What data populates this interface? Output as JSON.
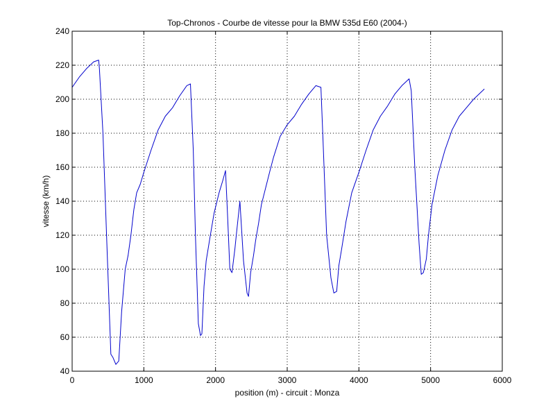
{
  "chart_data": {
    "type": "line",
    "title": "Top-Chronos - Courbe de vitesse pour la BMW 535d E60 (2004-)",
    "xlabel": "position (m) - circuit : Monza",
    "ylabel": "vitesse (km/h)",
    "xlim": [
      0,
      6000
    ],
    "ylim": [
      40,
      240
    ],
    "xticks": [
      0,
      1000,
      2000,
      3000,
      4000,
      5000,
      6000
    ],
    "yticks": [
      40,
      60,
      80,
      100,
      120,
      140,
      160,
      180,
      200,
      220,
      240
    ],
    "xtick_labels": [
      "0",
      "1000",
      "2000",
      "3000",
      "4000",
      "5000",
      "6000"
    ],
    "ytick_labels": [
      "40",
      "60",
      "80",
      "100",
      "120",
      "140",
      "160",
      "180",
      "200",
      "220",
      "240"
    ],
    "grid": true,
    "series": [
      {
        "color": "#0000cc",
        "x": [
          0,
          100,
          200,
          300,
          370,
          380,
          430,
          480,
          540,
          570,
          610,
          650,
          690,
          740,
          780,
          820,
          860,
          900,
          950,
          1000,
          1100,
          1200,
          1300,
          1400,
          1500,
          1600,
          1650,
          1690,
          1720,
          1760,
          1790,
          1810,
          1840,
          1870,
          1920,
          1980,
          2050,
          2100,
          2140,
          2170,
          2200,
          2230,
          2270,
          2290,
          2340,
          2390,
          2440,
          2460,
          2490,
          2530,
          2560,
          2600,
          2640,
          2700,
          2760,
          2810,
          2900,
          3000,
          3100,
          3200,
          3300,
          3400,
          3470,
          3500,
          3550,
          3610,
          3650,
          3690,
          3720,
          3760,
          3820,
          3900,
          4000,
          4100,
          4200,
          4300,
          4400,
          4500,
          4600,
          4700,
          4730,
          4780,
          4840,
          4870,
          4900,
          4940,
          4970,
          5020,
          5100,
          5200,
          5300,
          5400,
          5500,
          5600,
          5750
        ],
        "y": [
          207,
          213,
          218,
          222,
          223,
          218,
          180,
          120,
          50,
          48,
          44,
          46,
          75,
          100,
          108,
          120,
          135,
          145,
          150,
          157,
          170,
          182,
          190,
          195,
          202,
          208,
          209,
          170,
          120,
          68,
          61,
          62,
          90,
          105,
          118,
          133,
          145,
          152,
          158,
          130,
          100,
          98,
          112,
          120,
          140,
          105,
          86,
          84,
          98,
          108,
          117,
          127,
          138,
          148,
          158,
          166,
          178,
          185,
          190,
          197,
          203,
          208,
          207,
          175,
          120,
          95,
          86,
          87,
          102,
          112,
          128,
          145,
          157,
          170,
          182,
          190,
          196,
          203,
          208,
          212,
          205,
          160,
          115,
          97,
          98,
          106,
          120,
          138,
          155,
          170,
          182,
          190,
          195,
          200,
          206
        ]
      }
    ]
  }
}
